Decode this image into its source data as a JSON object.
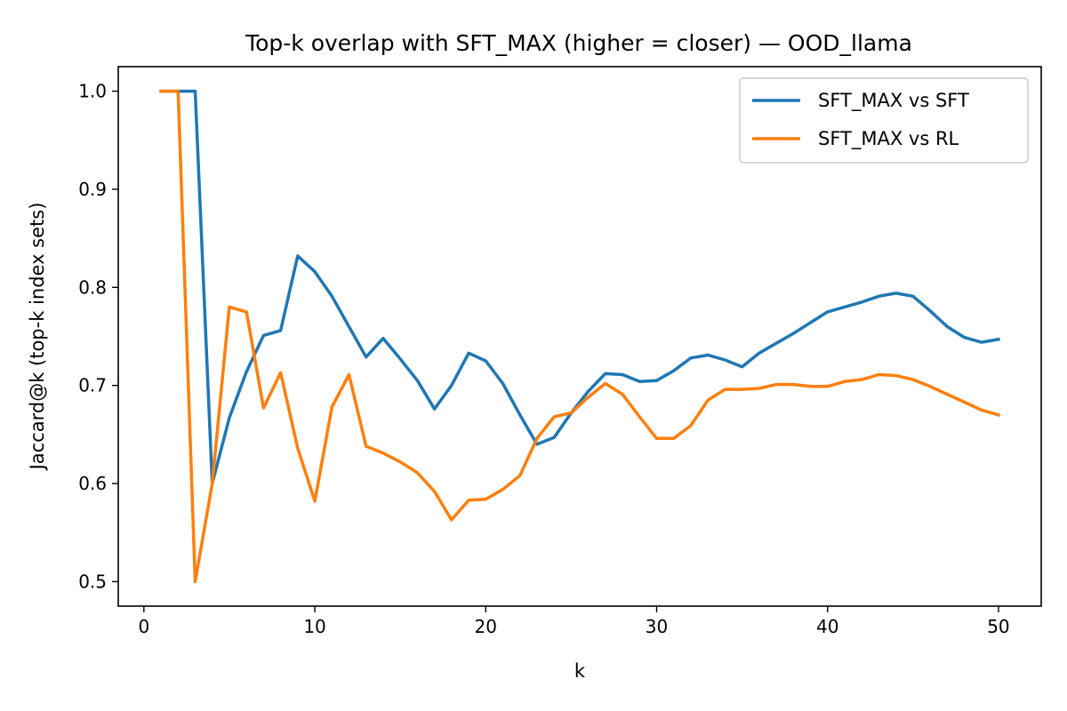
{
  "chart_data": {
    "type": "line",
    "title": "Top-k overlap with SFT_MAX (higher = closer) — OOD_llama",
    "xlabel": "k",
    "ylabel": "Jaccard@k (top-k index sets)",
    "xlim": [
      -1.5,
      52.5
    ],
    "ylim": [
      0.475,
      1.025
    ],
    "xticks": [
      0,
      10,
      20,
      30,
      40,
      50
    ],
    "xtick_labels": [
      "0",
      "10",
      "20",
      "30",
      "40",
      "50"
    ],
    "yticks": [
      0.5,
      0.6,
      0.7,
      0.8,
      0.9,
      1.0
    ],
    "ytick_labels": [
      "0.5",
      "0.6",
      "0.7",
      "0.8",
      "0.9",
      "1.0"
    ],
    "grid": false,
    "legend_position": "top-right",
    "x": [
      1,
      2,
      3,
      4,
      5,
      6,
      7,
      8,
      9,
      10,
      11,
      12,
      13,
      14,
      15,
      16,
      17,
      18,
      19,
      20,
      21,
      22,
      23,
      24,
      25,
      26,
      27,
      28,
      29,
      30,
      31,
      32,
      33,
      34,
      35,
      36,
      37,
      38,
      39,
      40,
      41,
      42,
      43,
      44,
      45,
      46,
      47,
      48,
      49,
      50
    ],
    "series": [
      {
        "name": "SFT_MAX vs SFT",
        "color": "#1f77b4",
        "values": [
          1.0,
          1.0,
          1.0,
          0.6,
          0.667,
          0.714,
          0.751,
          0.756,
          0.832,
          0.816,
          0.791,
          0.76,
          0.729,
          0.748,
          0.727,
          0.705,
          0.676,
          0.7,
          0.733,
          0.725,
          0.702,
          0.67,
          0.64,
          0.647,
          0.672,
          0.694,
          0.712,
          0.711,
          0.704,
          0.705,
          0.715,
          0.728,
          0.731,
          0.726,
          0.719,
          0.733,
          0.743,
          0.753,
          0.764,
          0.775,
          0.78,
          0.785,
          0.791,
          0.794,
          0.791,
          0.776,
          0.76,
          0.749,
          0.744,
          0.747
        ]
      },
      {
        "name": "SFT_MAX vs RL",
        "color": "#ff7f0e",
        "values": [
          1.0,
          1.0,
          0.5,
          0.6,
          0.78,
          0.775,
          0.677,
          0.713,
          0.636,
          0.582,
          0.678,
          0.711,
          0.638,
          0.631,
          0.622,
          0.611,
          0.592,
          0.563,
          0.583,
          0.584,
          0.594,
          0.608,
          0.646,
          0.668,
          0.672,
          0.688,
          0.702,
          0.691,
          0.668,
          0.646,
          0.646,
          0.659,
          0.685,
          0.696,
          0.696,
          0.697,
          0.701,
          0.701,
          0.699,
          0.699,
          0.704,
          0.706,
          0.711,
          0.71,
          0.706,
          0.699,
          0.691,
          0.683,
          0.675,
          0.67
        ]
      }
    ]
  }
}
